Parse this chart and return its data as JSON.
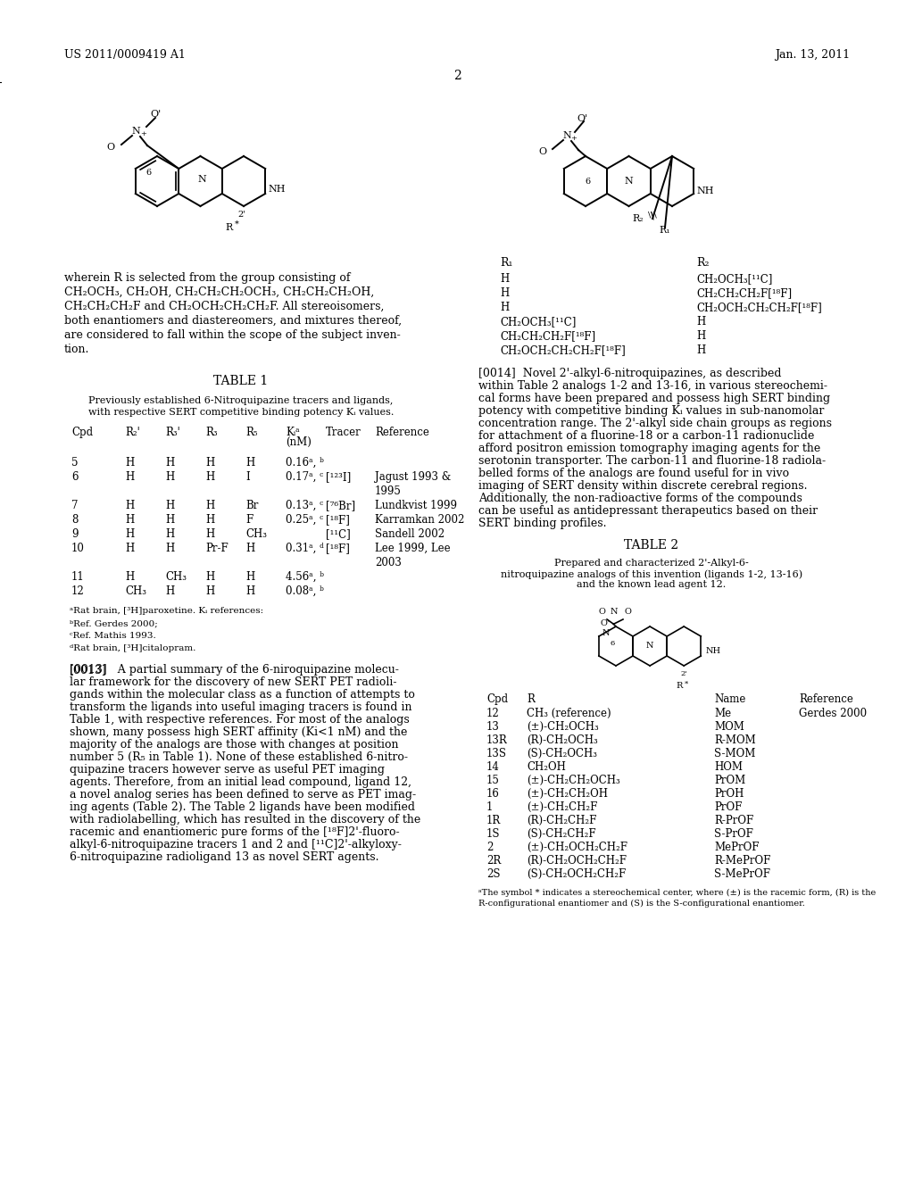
{
  "page_header_left": "US 2011/0009419 A1",
  "page_header_right": "Jan. 13, 2011",
  "page_number": "2",
  "background_color": "#ffffff",
  "text_color": "#000000",
  "font_family": "serif",
  "table1_title": "TABLE 1",
  "table1_caption_line1": "Previously established 6-Nitroquipazine tracers and ligands,",
  "table1_caption_line2": "with respective SERT competitive binding potency Kᵢ values.",
  "table1_headers": [
    "Cpd",
    "R₂'",
    "R₃'",
    "R₃",
    "R₅",
    "Kᵢᵃ\n(nM)",
    "Tracer",
    "Reference"
  ],
  "table1_rows": [
    [
      "5",
      "H",
      "H",
      "H",
      "H",
      "0.16ᵃ, ᵇ",
      "",
      ""
    ],
    [
      "6",
      "H",
      "H",
      "H",
      "I",
      "0.17ᵃ, ᶜ",
      "[¹²³I]",
      "Jagust 1993 &\n1995"
    ],
    [
      "7",
      "H",
      "H",
      "H",
      "Br",
      "0.13ᵃ, ᶜ",
      "[⁷⁶Br]",
      "Lundkvist 1999"
    ],
    [
      "8",
      "H",
      "H",
      "H",
      "F",
      "0.25ᵃ, ᶜ",
      "[¹⁸F]",
      "Karramkan 2002"
    ],
    [
      "9",
      "H",
      "H",
      "H",
      "CH₃",
      "",
      "[¹¹C]",
      "Sandell 2002"
    ],
    [
      "10",
      "H",
      "H",
      "Pr-F",
      "H",
      "0.31ᵃ, ᵈ",
      "[¹⁸F]",
      "Lee 1999, Lee\n2003"
    ],
    [
      "11",
      "H",
      "CH₃",
      "H",
      "H",
      "4.56ᵃ, ᵇ",
      "",
      ""
    ],
    [
      "12",
      "CH₃",
      "H",
      "H",
      "H",
      "0.08ᵃ, ᵇ",
      "",
      ""
    ]
  ],
  "table1_footnotes": [
    "ᵃRat brain, [³H]paroxetine. Kᵢ references:",
    "ᵇRef. Gerdes 2000;",
    "ᶜRef. Mathis 1993.",
    "ᵈRat brain, [³H]citalopram."
  ],
  "table2_title": "TABLE 2",
  "table2_caption": "Prepared and characterized 2'-Alkyl-6-\nnitroquipazine analogs of this invention (ligands 1-2, 13-16)\nand the known lead agent 12.",
  "table2_headers": [
    "Cpd",
    "R",
    "Name",
    "Reference"
  ],
  "table2_rows": [
    [
      "12",
      "CH₃ (reference)",
      "Me",
      "Gerdes 2000"
    ],
    [
      "13",
      "(±)-CH₂OCH₃",
      "MOM",
      ""
    ],
    [
      "13R",
      "(R)-CH₂OCH₃",
      "R-MOM",
      ""
    ],
    [
      "13S",
      "(S)-CH₂OCH₃",
      "S-MOM",
      ""
    ],
    [
      "14",
      "CH₂OH",
      "HOM",
      ""
    ],
    [
      "15",
      "(±)-CH₂CH₂OCH₃",
      "PrOM",
      ""
    ],
    [
      "16",
      "(±)-CH₂CH₂OH",
      "PrOH",
      ""
    ],
    [
      "1",
      "(±)-CH₂CH₂F",
      "PrOF",
      ""
    ],
    [
      "1R",
      "(R)-CH₂CH₂F",
      "R-PrOF",
      ""
    ],
    [
      "1S",
      "(S)-CH₂CH₂F",
      "S-PrOF",
      ""
    ],
    [
      "2",
      "(±)-CH₂OCH₂CH₂F",
      "MePrOF",
      ""
    ],
    [
      "2R",
      "(R)-CH₂OCH₂CH₂F",
      "R-MePrOF",
      ""
    ],
    [
      "2S",
      "(S)-CH₂OCH₂CH₂F",
      "S-MePrOF",
      ""
    ]
  ],
  "table2_footnote": "The symbol * indicates a stereochemical center, where (±) is the racemic form, (R) is the\nR-configurational enantiomer and (S) is the S-configurational enantiomer.",
  "para0013_label": "[0013]",
  "para0013_text": "A partial summary of the 6-niroquipazine molecular framework for the discovery of new SERT PET radioligands within the molecular class as a function of attempts to transform the ligands into useful imaging tracers is found in Table 1, with respective references. For most of the analogs shown, many possess high SERT affinity (Ki<1 nM) and the majority of the analogs are those with changes at position number 5 (R₅ in Table 1). None of these established 6-nitroquipazine tracers however serve as useful PET imaging agents. Therefore, from an initial lead compound, ligand 12, a novel analog series has been defined to serve as PET imaging agents (Table 2). The Table 2 ligands have been modified with radiolabelling, which has resulted in the discovery of the racemic and enantiomeric pure forms of the [¹⁸F]2'-fluoroalkyl-6-nitroquipazine tracers 1 and 2 and [¹¹C]2'-alkyloxy-6-nitroquipazine radioligand 13 as novel SERT agents.",
  "para0014_label": "[0014]",
  "para0014_text": "Novel 2'-alkyl-6-nitroquipazines, as described within Table 2 analogs 1-2 and 13-16, in various stereochemical forms have been prepared and possess high SERT binding potency with competitive binding Kᵢ values in sub-nanomolar concentration range. The 2'-alkyl side chain groups as regions for attachment of a fluorine-18 or a carbon-11 radionuclide afford positron emission tomography imaging agents for the serotonin transporter. The carbon-11 and fluorine-18 radiolabelled forms of the analogs are found useful for in vivo imaging of SERT density within discrete cerebral regions. Additionally, the non-radioactive forms of the compounds can be useful as antidepressant therapeutics based on their SERT binding profiles.",
  "left_body_text_line1": "wherein R is selected from the group consisting of",
  "left_body_text_line2": "CH₂OCH₃, CH₂OH, CH₂CH₂CH₂OCH₃, CH₂CH₂CH₂OH,",
  "left_body_text_line3": "CH₂CH₂CH₂F and CH₂OCH₂CH₂CH₂F. All stereoisomers,",
  "left_body_text_line4": "both enantiomers and diastereomers, and mixtures thereof,",
  "left_body_text_line5": "are considered to fall within the scope of the subject inven-",
  "left_body_text_line6": "tion.",
  "right_R1_R2_table": {
    "headers": [
      "R₁",
      "R₂"
    ],
    "rows": [
      [
        "H",
        "CH₂OCH₃[¹¹C]"
      ],
      [
        "H",
        "CH₂CH₂CH₂F[¹⁸F]"
      ],
      [
        "H",
        "CH₂OCH₂CH₂CH₂F[¹⁸F]"
      ],
      [
        "CH₂OCH₃[¹¹C]",
        "H"
      ],
      [
        "CH₂CH₂CH₂F[¹⁸F]",
        "H"
      ],
      [
        "CH₂OCH₂CH₂CH₂F[¹⁸F]",
        "H"
      ]
    ]
  }
}
